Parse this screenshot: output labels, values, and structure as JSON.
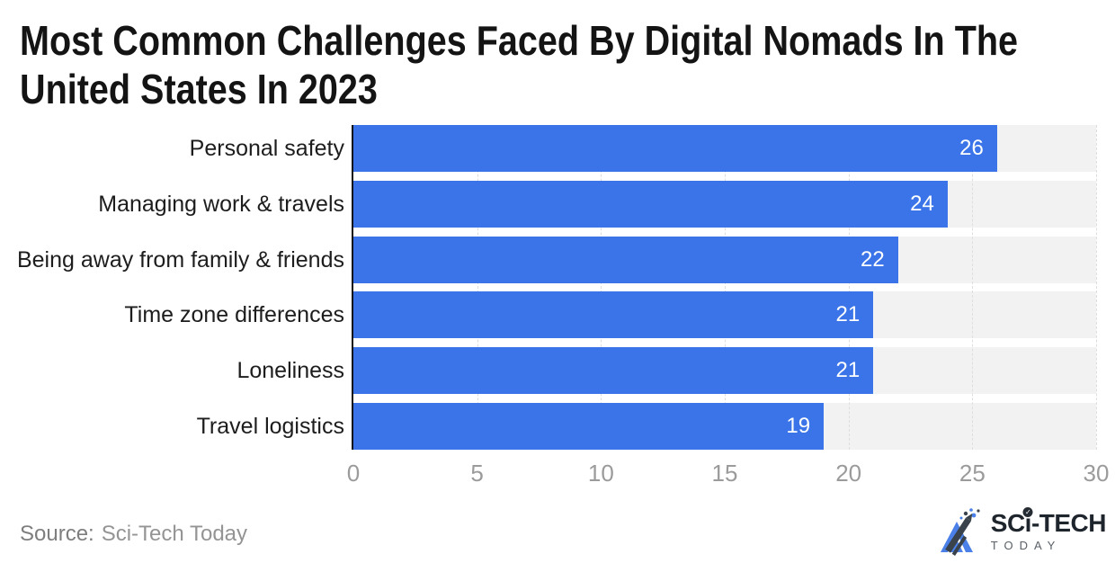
{
  "title": {
    "lines": [
      "Most Common Challenges Faced By Digital Nomads In The",
      "United States In 2023"
    ]
  },
  "chart_data": {
    "type": "bar",
    "orientation": "horizontal",
    "title": "Most Common Challenges Faced By Digital Nomads In The United States In 2023",
    "categories": [
      "Personal safety",
      "Managing work & travels",
      "Being away from family & friends",
      "Time zone differences",
      "Loneliness",
      "Travel logistics"
    ],
    "values": [
      26,
      24,
      22,
      21,
      21,
      19
    ],
    "xlim": [
      0,
      30
    ],
    "xticks": [
      0,
      5,
      10,
      15,
      20,
      25,
      30
    ],
    "grid": true,
    "legend": "none",
    "colors": {
      "bar": "#3a74e8",
      "track": "#f2f2f2",
      "gridline": "#dedede",
      "axis_line": "#111111",
      "value_label": "#ffffff",
      "tick_label": "#9b9b9b",
      "category_label": "#1d1d1d"
    }
  },
  "source": {
    "label": "Source:",
    "value": "Sci-Tech Today"
  },
  "logo": {
    "brand_prefix": "SC",
    "brand_i": "i",
    "brand_suffix": "-TECH",
    "tagline": "TODAY",
    "check_glyph": "✓",
    "mark_blue": "#4a80e8",
    "mark_dark": "#3a424b"
  }
}
